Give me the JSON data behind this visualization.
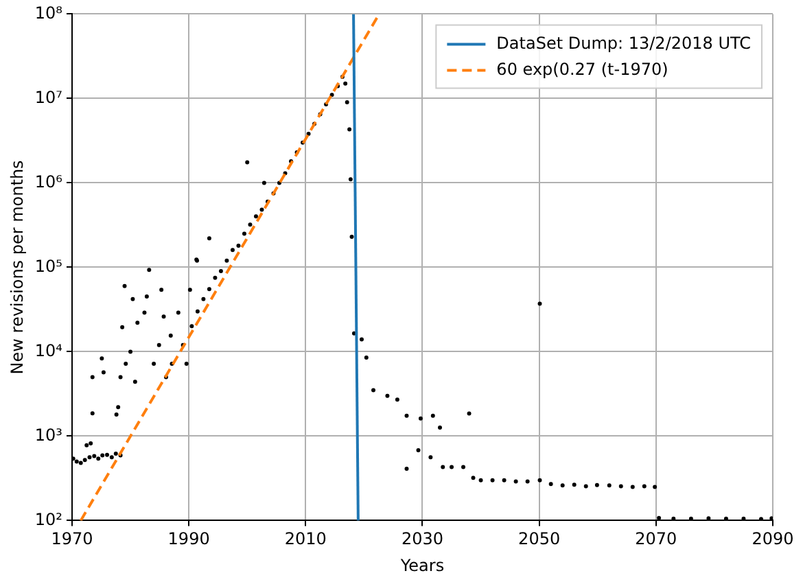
{
  "chart_data": {
    "type": "scatter",
    "xlabel": "Years",
    "ylabel": "New revisions per months",
    "log": "y",
    "grid": true,
    "legend": "top right",
    "xlim": [
      1970,
      2090
    ],
    "xticks": [
      1970,
      1990,
      2010,
      2030,
      2050,
      2070,
      2090
    ],
    "ylim": [
      100,
      100000000
    ],
    "yticks": [
      {
        "value": 100,
        "label": "10²"
      },
      {
        "value": 1000,
        "label": "10³"
      },
      {
        "value": 10000,
        "label": "10⁴"
      },
      {
        "value": 100000,
        "label": "10⁵"
      },
      {
        "value": 1000000,
        "label": "10⁶"
      },
      {
        "value": 10000000,
        "label": "10⁷"
      },
      {
        "value": 100000000,
        "label": "10⁸"
      }
    ],
    "series": [
      {
        "color": "#000000",
        "marker": "circle",
        "x": [
          1970.2,
          1970.8,
          1971.5,
          1972.2,
          1972.5,
          1973,
          1973.2,
          1973.5,
          1973.5,
          1973.8,
          1974.5,
          1975.1,
          1975.2,
          1975.4,
          1976,
          1976.8,
          1977.5,
          1977.6,
          1977.9,
          1978.3,
          1978.3,
          1978.6,
          1979,
          1979.2,
          1980,
          1980.4,
          1980.8,
          1981.2,
          1982.4,
          1982.8,
          1983.2,
          1984,
          1984.9,
          1985.3,
          1985.7,
          1986.1,
          1986.9,
          1987.1,
          1988.2,
          1989,
          1989.6,
          1990.2,
          1990.5,
          1991.3,
          1991.4,
          1991.5,
          1992.5,
          1993.5,
          1993.5,
          1994.5,
          1995.5,
          1996.5,
          1997.5,
          1998.5,
          1999.5,
          2000,
          2000.5,
          2001.5,
          2002.5,
          2002.9,
          2003.5,
          2004.5,
          2005.5,
          2006.5,
          2007.5,
          2008.5,
          2009.5,
          2010.5,
          2011.5,
          2012.5,
          2013.5,
          2014.5,
          2015.5,
          2016.3,
          2016.8,
          2017.1,
          2017.5,
          2017.7,
          2017.9,
          2018.3,
          2019.6,
          2020.4,
          2021.6,
          2024,
          2025.7,
          2027.3,
          2027.3,
          2029.3,
          2029.7,
          2031.4,
          2031.8,
          2033,
          2033.5,
          2035,
          2037,
          2038,
          2038.7,
          2040,
          2042,
          2044,
          2046,
          2048,
          2050.1,
          2050.1,
          2052,
          2054,
          2056,
          2058,
          2059.9,
          2062,
          2064,
          2066,
          2068,
          2069.8,
          2070.5,
          2073,
          2076,
          2079,
          2082,
          2085,
          2088,
          2089.8
        ],
        "values": [
          540,
          500,
          480,
          520,
          780,
          560,
          820,
          5000,
          1860,
          580,
          540,
          8300,
          590,
          5700,
          600,
          560,
          620,
          1800,
          2200,
          590,
          5000,
          19500,
          60000,
          7200,
          10000,
          42000,
          4400,
          22000,
          29000,
          45000,
          93000,
          7200,
          12000,
          54000,
          26000,
          5000,
          15500,
          7200,
          29000,
          12000,
          7200,
          54000,
          20000,
          123000,
          120000,
          30000,
          42000,
          55000,
          220000,
          75000,
          90000,
          120000,
          160000,
          180000,
          250000,
          1750000,
          320000,
          400000,
          480000,
          1000000,
          600000,
          750000,
          1000000,
          1300000,
          1800000,
          2300000,
          3000000,
          3800000,
          5000000,
          6500000,
          8500000,
          11000000,
          14000000,
          18000000,
          15000000,
          9000000,
          4300000,
          1100000,
          230000,
          16500,
          14000,
          8500,
          3500,
          3000,
          2700,
          1740,
          410,
          680,
          1620,
          560,
          1740,
          1260,
          430,
          430,
          430,
          1850,
          320,
          300,
          300,
          300,
          290,
          290,
          300,
          37000,
          270,
          260,
          265,
          255,
          263,
          260,
          255,
          250,
          255,
          250,
          107,
          105,
          105,
          106,
          105,
          105,
          104,
          106
        ]
      },
      {
        "type": "line",
        "name": "DataSet Dump: 13/2/2018 UTC",
        "color": "#1f77b4",
        "line_style": "solid",
        "x": [
          2018.2,
          2019
        ],
        "values": [
          100000000,
          100
        ]
      },
      {
        "type": "line",
        "name": "60 exp(0.27 (t-1970)",
        "color": "#ff7f0e",
        "line_style": "dashed",
        "x": [
          1971.5,
          2022.6
        ],
        "values": [
          100,
          100000000
        ]
      }
    ]
  }
}
